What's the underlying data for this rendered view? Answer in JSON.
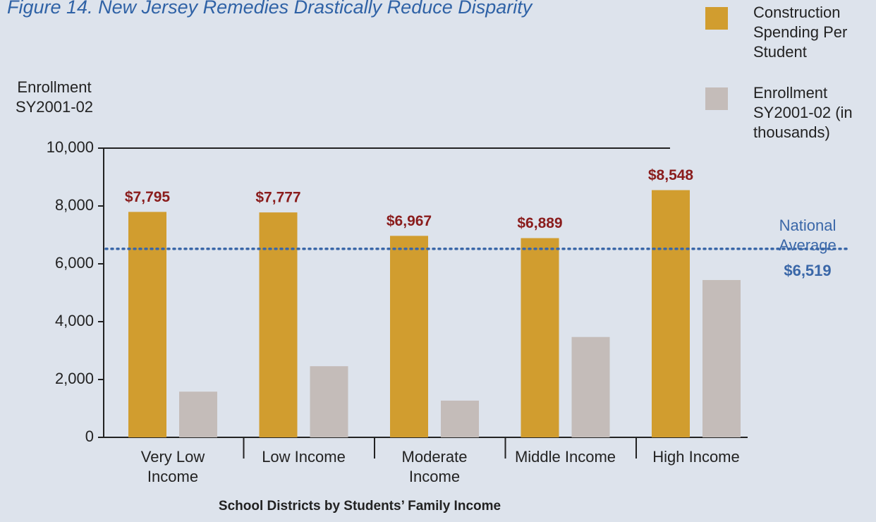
{
  "chart_data": {
    "type": "bar",
    "title": "Figure 14. New Jersey Remedies Drastically Reduce Disparity",
    "y_label": "Enrollment SY2001-02",
    "x_label": "School Districts by Students’ Family Income",
    "categories": [
      "Very Low Income",
      "Low Income",
      "Moderate Income",
      "Middle Income",
      "High Income"
    ],
    "series": [
      {
        "name": "Construction Spending Per Student",
        "color": "#d19d2f",
        "values": [
          7795,
          7777,
          6967,
          6889,
          8548
        ],
        "value_labels": [
          "$7,795",
          "$7,777",
          "$6,967",
          "$6,889",
          "$8,548"
        ]
      },
      {
        "name": "Enrollment SY2001-02 (in thousands)",
        "color": "#c4bcb9",
        "values": [
          1580,
          2460,
          1270,
          3470,
          5440
        ]
      }
    ],
    "ylim": [
      0,
      10000
    ],
    "yticks": [
      0,
      {
        "value": 2000,
        "label": "2,000"
      },
      {
        "value": 4000,
        "label": "4,000"
      },
      {
        "value": 6000,
        "label": "6,000"
      },
      {
        "value": 8000,
        "label": "8,000"
      },
      {
        "value": 10000,
        "label": "10,000"
      }
    ],
    "reference_line": {
      "label": "National Average",
      "value": 6519,
      "value_label": "$6,519",
      "color": "#3a67a8"
    },
    "legend": "top-right"
  }
}
